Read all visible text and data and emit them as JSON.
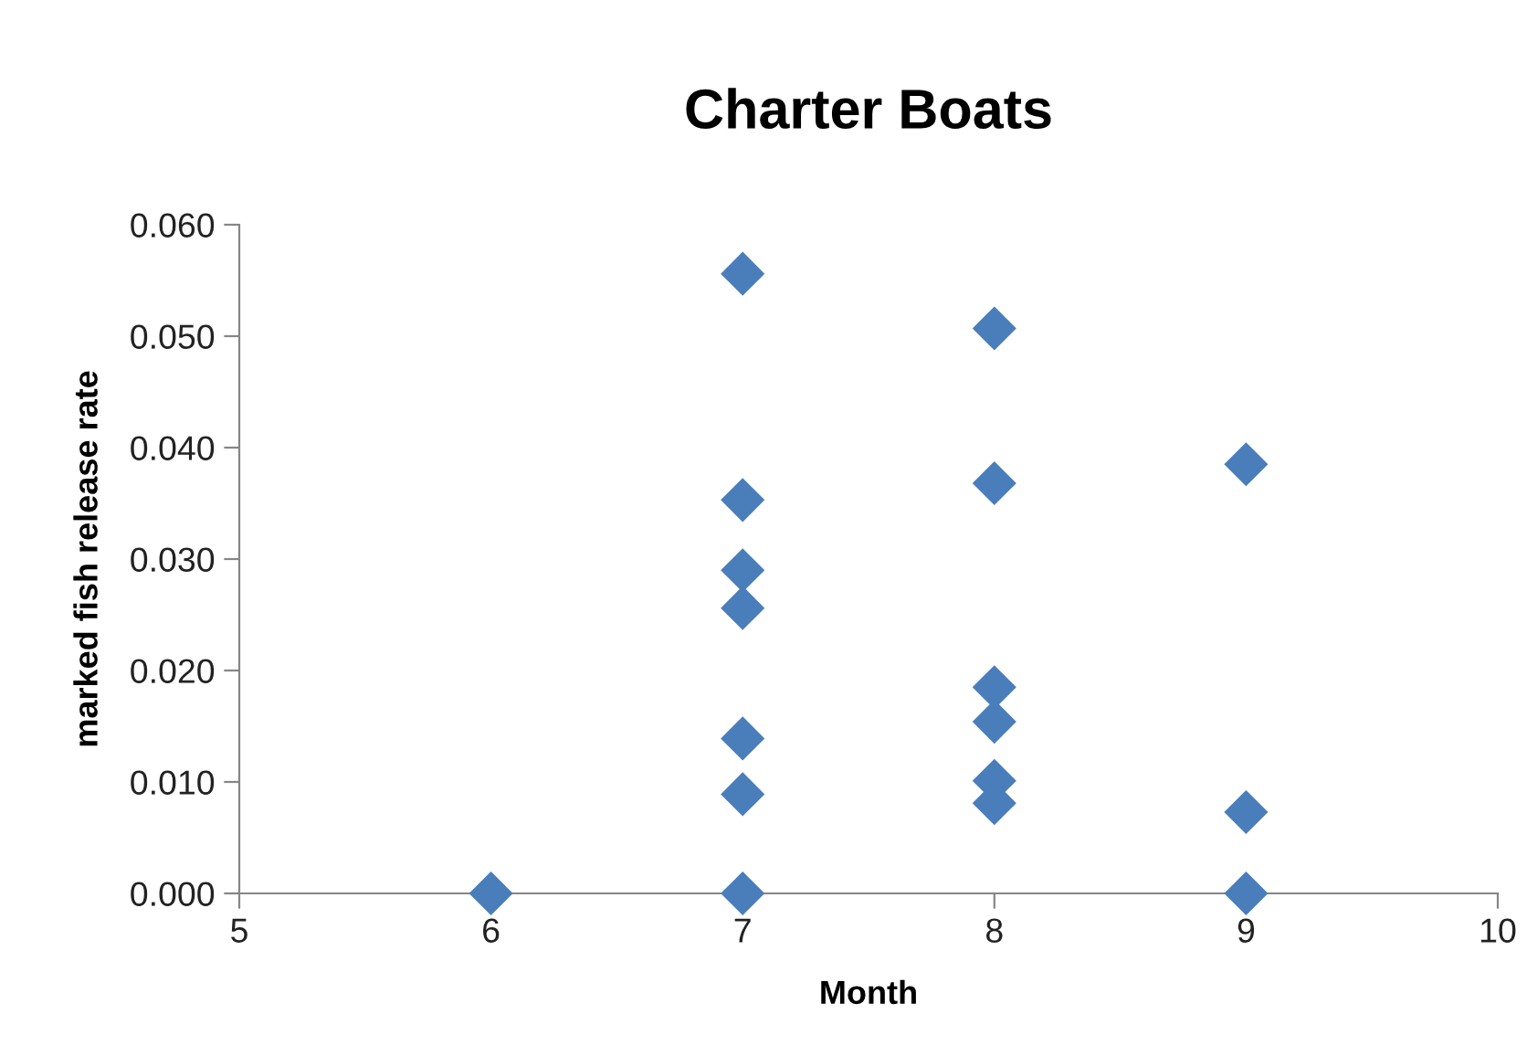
{
  "chart_data": {
    "type": "scatter",
    "title": "Charter Boats",
    "xlabel": "Month",
    "ylabel": "marked fish release rate",
    "x": [
      6,
      7,
      7,
      7,
      7,
      7,
      7,
      7,
      8,
      8,
      8,
      8,
      8,
      8,
      9,
      9,
      9
    ],
    "values": [
      0.0,
      0.0556,
      0.0353,
      0.029,
      0.0256,
      0.0139,
      0.0089,
      0.0,
      0.0507,
      0.0368,
      0.0185,
      0.0154,
      0.0101,
      0.0081,
      0.0385,
      0.0073,
      0.0
    ],
    "color": "#4a7ebb",
    "marker": "diamond",
    "grid": false,
    "xlim": [
      5,
      10
    ],
    "xticks": [
      5,
      6,
      7,
      8,
      9,
      10
    ],
    "ylim": [
      0,
      0.06
    ],
    "yticks": [
      {
        "value": 0,
        "label": "0.000"
      },
      {
        "value": 0.01,
        "label": "0.010"
      },
      {
        "value": 0.02,
        "label": "0.020"
      },
      {
        "value": 0.03,
        "label": "0.030"
      },
      {
        "value": 0.04,
        "label": "0.040"
      },
      {
        "value": 0.05,
        "label": "0.050"
      },
      {
        "value": 0.06,
        "label": "0.060"
      }
    ]
  }
}
